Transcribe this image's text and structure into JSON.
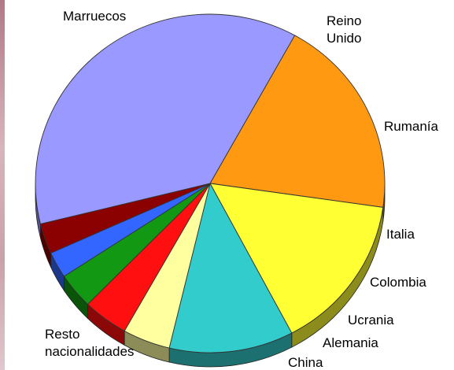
{
  "chart_data": {
    "type": "pie",
    "title": "",
    "start_angle_deg": -61,
    "categories": [
      "Marruecos",
      "Reino Unido",
      "Rumanía",
      "Italia",
      "Colombia",
      "Ucrania",
      "Alemania",
      "China",
      "Resto nacionalidades"
    ],
    "values": [
      19.2,
      15.0,
      11.5,
      4.4,
      4.2,
      3.4,
      2.5,
      2.9,
      36.9
    ],
    "colors": [
      "#ff9912",
      "#ffff33",
      "#33cccc",
      "#ffffa0",
      "#ff0f0f",
      "#129812",
      "#3366ff",
      "#8b0000",
      "#9999ff"
    ],
    "labels": [
      {
        "lines": [
          "Marruecos"
        ]
      },
      {
        "lines": [
          "Reino",
          "Unido"
        ]
      },
      {
        "lines": [
          "Rumanía"
        ]
      },
      {
        "lines": [
          "Italia"
        ]
      },
      {
        "lines": [
          "Colombia"
        ]
      },
      {
        "lines": [
          "Ucrania"
        ]
      },
      {
        "lines": [
          "Alemania"
        ]
      },
      {
        "lines": [
          "China"
        ]
      },
      {
        "lines": [
          "Resto",
          "nacionalidades"
        ]
      }
    ],
    "style": "3d-pie"
  }
}
